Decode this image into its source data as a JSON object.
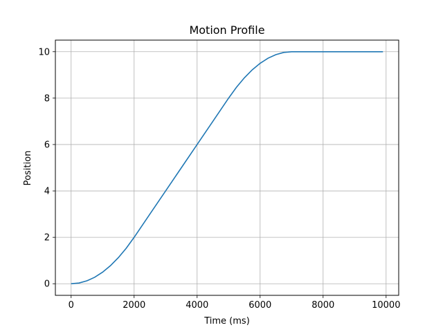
{
  "chart_data": {
    "type": "line",
    "title": "Motion Profile",
    "xlabel": "Time (ms)",
    "ylabel": "Position",
    "xlim": [
      -500,
      10400
    ],
    "ylim": [
      -0.5,
      10.5
    ],
    "xticks": [
      0,
      2000,
      4000,
      6000,
      8000,
      10000
    ],
    "yticks": [
      0,
      2,
      4,
      6,
      8,
      10
    ],
    "grid": true,
    "series": [
      {
        "color": "#1f77b4",
        "x": [
          0,
          250,
          500,
          750,
          1000,
          1250,
          1500,
          1750,
          2000,
          2500,
          3000,
          3500,
          4000,
          4500,
          5000,
          5250,
          5500,
          5750,
          6000,
          6250,
          6500,
          6750,
          7000,
          7500,
          8000,
          8500,
          9000,
          9500,
          9900
        ],
        "y": [
          0,
          0.031,
          0.125,
          0.281,
          0.5,
          0.781,
          1.125,
          1.531,
          2.0,
          3.0,
          4.0,
          5.0,
          6.0,
          7.0,
          8.0,
          8.469,
          8.875,
          9.219,
          9.5,
          9.719,
          9.875,
          9.969,
          10.0,
          10.0,
          10.0,
          10.0,
          10.0,
          10.0,
          10.0
        ]
      }
    ]
  }
}
